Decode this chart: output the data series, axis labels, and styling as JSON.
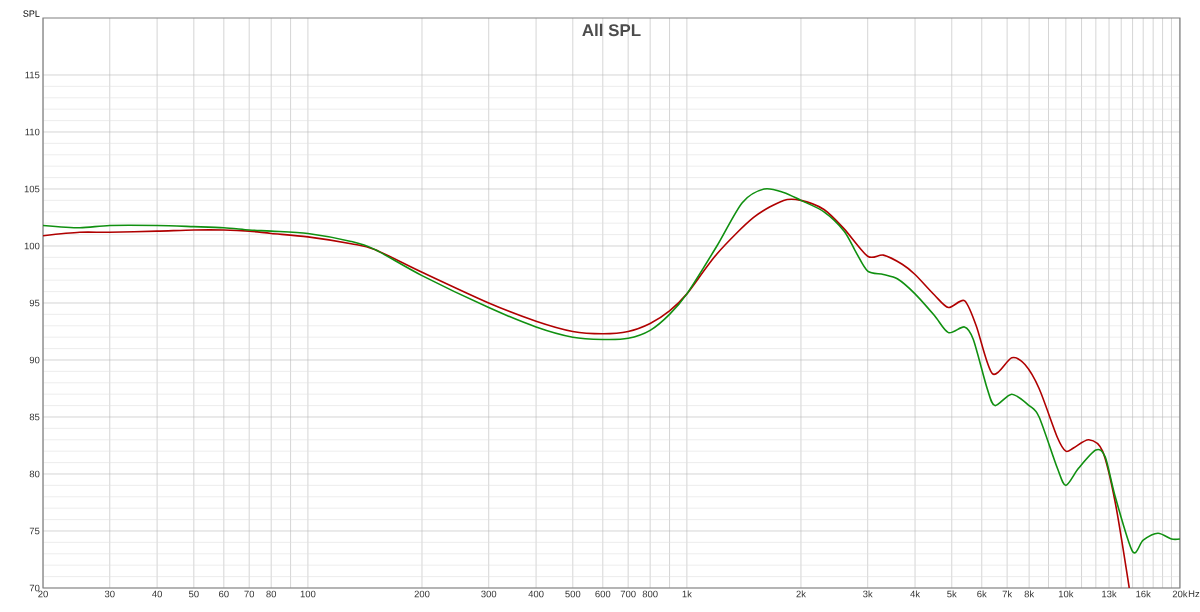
{
  "chart_data": {
    "type": "line",
    "title": "All SPL",
    "ylabel": "SPL",
    "log": "x",
    "grid": true,
    "marker": "none",
    "line_style": "solid",
    "xlim": [
      20,
      20000
    ],
    "ylim": [
      70,
      120
    ],
    "xticks": [
      20,
      30,
      40,
      50,
      60,
      70,
      80,
      {
        "value": 90,
        "label": null
      },
      100,
      200,
      300,
      400,
      500,
      600,
      700,
      800,
      {
        "value": 900,
        "label": null
      },
      {
        "value": 1000,
        "label": "1k"
      },
      {
        "value": 2000,
        "label": "2k"
      },
      {
        "value": 3000,
        "label": "3k"
      },
      {
        "value": 4000,
        "label": "4k"
      },
      {
        "value": 5000,
        "label": "5k"
      },
      {
        "value": 6000,
        "label": "6k"
      },
      {
        "value": 7000,
        "label": "7k"
      },
      {
        "value": 8000,
        "label": "8k"
      },
      {
        "value": 9000,
        "label": null
      },
      {
        "value": 10000,
        "label": "10k"
      },
      {
        "value": 11000,
        "label": null
      },
      {
        "value": 12000,
        "label": null
      },
      {
        "value": 13000,
        "label": "13k"
      },
      {
        "value": 14000,
        "label": null
      },
      {
        "value": 15000,
        "label": null
      },
      {
        "value": 16000,
        "label": "16k"
      },
      {
        "value": 17000,
        "label": null
      },
      {
        "value": 18000,
        "label": null
      },
      {
        "value": 19000,
        "label": null
      },
      {
        "value": 20000,
        "label": "20k"
      }
    ],
    "xlabel": "Hz",
    "yticks": [
      70,
      75,
      80,
      85,
      90,
      95,
      100,
      105,
      110,
      115
    ],
    "series": [
      {
        "color": "#b00000",
        "x": [
          20,
          25,
          30,
          40,
          50,
          60,
          70,
          80,
          100,
          130,
          150,
          200,
          300,
          400,
          500,
          600,
          700,
          800,
          900,
          1000,
          1200,
          1500,
          1800,
          2000,
          2300,
          2600,
          3000,
          3300,
          3700,
          4000,
          4500,
          4900,
          5400,
          5800,
          6400,
          7200,
          7800,
          8500,
          9500,
          10000,
          10500,
          11500,
          12500,
          13500,
          14700
        ],
        "values": [
          100.9,
          101.2,
          101.2,
          101.3,
          101.4,
          101.4,
          101.3,
          101.1,
          100.8,
          100.2,
          99.7,
          97.7,
          95.0,
          93.4,
          92.5,
          92.3,
          92.5,
          93.2,
          94.3,
          95.8,
          99.3,
          102.5,
          104.0,
          104.0,
          103.2,
          101.5,
          99.1,
          99.2,
          98.4,
          97.5,
          95.7,
          94.6,
          95.2,
          93.0,
          88.8,
          90.2,
          89.6,
          87.5,
          83.2,
          82.0,
          82.3,
          83.0,
          82.0,
          77.5,
          70
        ]
      },
      {
        "color": "#109010",
        "x": [
          20,
          25,
          30,
          40,
          50,
          60,
          70,
          80,
          100,
          130,
          150,
          200,
          300,
          400,
          500,
          600,
          700,
          800,
          900,
          1000,
          1200,
          1400,
          1600,
          1800,
          2000,
          2300,
          2600,
          2800,
          3000,
          3300,
          3600,
          4000,
          4500,
          4900,
          5400,
          5700,
          6200,
          6500,
          7200,
          8000,
          8500,
          9500,
          10000,
          10800,
          12000,
          12700,
          13500,
          15000,
          16000,
          17500,
          19000,
          20000
        ],
        "values": [
          101.8,
          101.6,
          101.8,
          101.8,
          101.7,
          101.6,
          101.4,
          101.3,
          101.1,
          100.4,
          99.7,
          97.4,
          94.6,
          92.9,
          92.0,
          91.8,
          91.9,
          92.6,
          94.0,
          95.8,
          100.0,
          103.8,
          105.0,
          104.7,
          104.0,
          103.0,
          101.3,
          99.4,
          97.8,
          97.5,
          97.1,
          95.8,
          93.9,
          92.4,
          92.9,
          91.8,
          87.5,
          86.0,
          87.0,
          86.0,
          85.0,
          80.5,
          79.0,
          80.5,
          82.1,
          81.5,
          78.0,
          73.2,
          74.2,
          74.8,
          74.3,
          74.3
        ]
      }
    ]
  }
}
